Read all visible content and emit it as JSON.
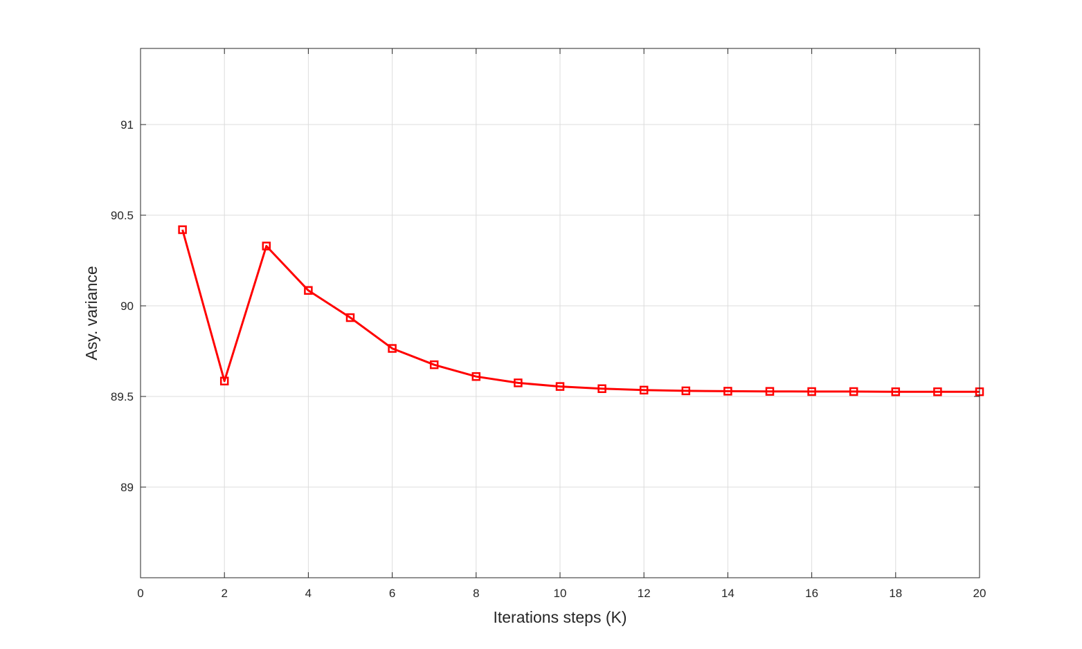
{
  "chart_data": {
    "type": "line",
    "xlabel": "Iterations steps (K)",
    "ylabel": "Asy. variance",
    "xlim": [
      0,
      20
    ],
    "ylim": [
      88.5,
      91.42
    ],
    "xticks": [
      0,
      2,
      4,
      6,
      8,
      10,
      12,
      14,
      16,
      18,
      20
    ],
    "yticks": [
      89,
      89.5,
      90,
      90.5,
      91
    ],
    "ytick_labels": [
      "89",
      "89.5",
      "90",
      "90.5",
      "91"
    ],
    "grid": true,
    "box": true,
    "series": [
      {
        "color": "#ff0000",
        "marker": "square",
        "x": [
          1,
          2,
          3,
          4,
          5,
          6,
          7,
          8,
          9,
          10,
          11,
          12,
          13,
          14,
          15,
          16,
          17,
          18,
          19,
          20
        ],
        "values": [
          90.42,
          89.585,
          90.33,
          90.085,
          89.935,
          89.765,
          89.675,
          89.61,
          89.575,
          89.555,
          89.543,
          89.535,
          89.531,
          89.529,
          89.528,
          89.527,
          89.527,
          89.526,
          89.526,
          89.526
        ]
      }
    ]
  }
}
